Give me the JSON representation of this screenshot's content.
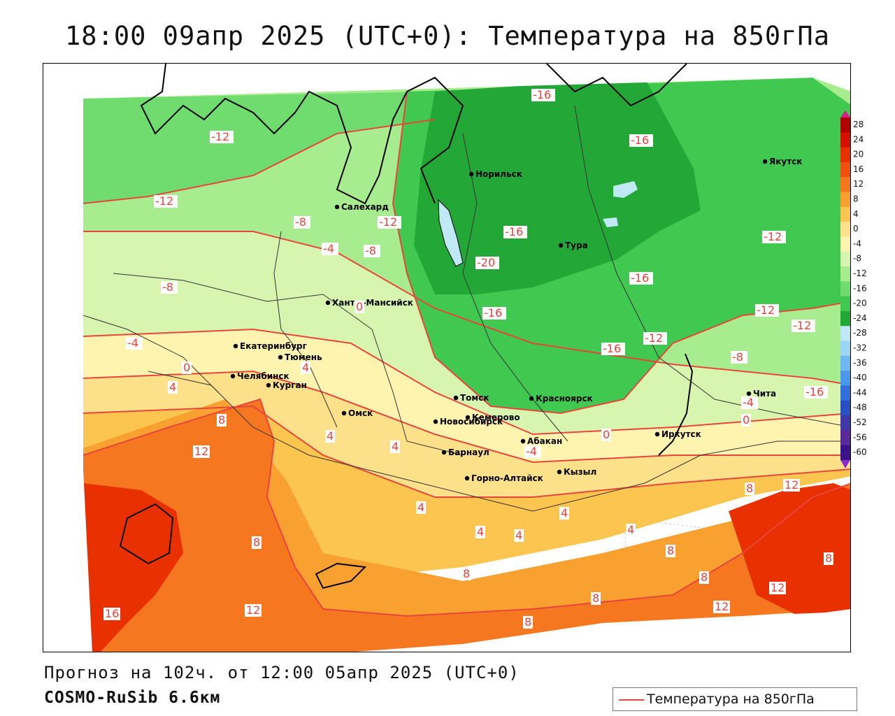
{
  "title": "18:00 09апр 2025 (UTC+0): Температура на 850гПа",
  "footer": {
    "forecast": "Прогноз на 102ч. от 12:00 05апр 2025 (UTC+0)",
    "model": "COSMO-RuSib 6.6км"
  },
  "legend": {
    "label": "Температура на 850гПа",
    "line_color": "#e8453c"
  },
  "colorbar": {
    "ticks": [
      "28",
      "24",
      "20",
      "16",
      "12",
      "8",
      "4",
      "0",
      "-4",
      "-8",
      "-12",
      "-16",
      "-20",
      "-24",
      "-28",
      "-32",
      "-36",
      "-40",
      "-44",
      "-48",
      "-52",
      "-56",
      "-60"
    ],
    "colors": [
      "#b00000",
      "#d41000",
      "#e83000",
      "#f05010",
      "#f57820",
      "#f8a030",
      "#fbc550",
      "#fde08a",
      "#fff3b0",
      "#d8f5b0",
      "#a8ec90",
      "#70dc70",
      "#40c850",
      "#23a838",
      "#bfeaf5",
      "#9dd6f5",
      "#6fb8f0",
      "#4a98e8",
      "#3070d8",
      "#2850c0",
      "#4038a8",
      "#5a2a98",
      "#3a148a"
    ],
    "top_color": "#d61f8a",
    "bottom_color": "#8b2ad0"
  },
  "cities": [
    {
      "name": "Салехард"
    },
    {
      "name": "Норильск"
    },
    {
      "name": "Якутск"
    },
    {
      "name": "Тура"
    },
    {
      "name": "Ханты-Мансийск"
    },
    {
      "name": "Екатеринбург"
    },
    {
      "name": "Тюмень"
    },
    {
      "name": "Челябинск"
    },
    {
      "name": "Курган"
    },
    {
      "name": "Омск"
    },
    {
      "name": "Новосибирск"
    },
    {
      "name": "Томск"
    },
    {
      "name": "Кемерово"
    },
    {
      "name": "Красноярск"
    },
    {
      "name": "Барнаул"
    },
    {
      "name": "Абакан"
    },
    {
      "name": "Горно-Алтайск"
    },
    {
      "name": "Кызыл"
    },
    {
      "name": "Иркутск"
    },
    {
      "name": "Чита"
    }
  ],
  "isotherm_labels": [
    "-16",
    "-16",
    "-16",
    "-16",
    "-16",
    "-16",
    "-16",
    "-20",
    "-12",
    "-12",
    "-12",
    "-12",
    "-12",
    "-12",
    "-12",
    "-8",
    "-8",
    "-8",
    "-8",
    "-4",
    "-4",
    "-4",
    "-4",
    "0",
    "0",
    "0",
    "0",
    "4",
    "4",
    "4",
    "4",
    "4",
    "4",
    "4",
    "4",
    "4",
    "8",
    "8",
    "8",
    "8",
    "8",
    "8",
    "8",
    "8",
    "8",
    "12",
    "12",
    "12",
    "12",
    "12",
    "16"
  ],
  "colors": {
    "very_warm": "#e83000",
    "warm": "#f57820",
    "mild": "#f8a030",
    "light": "#fbc550",
    "pale": "#fde08a",
    "cream": "#fff3b0",
    "light_green": "#d8f5b0",
    "green": "#a8ec90",
    "mid_green": "#70dc70",
    "dark_green": "#40c850",
    "deep_green": "#23a838",
    "water": "#bfeaf5",
    "isotherm": "#e8453c"
  }
}
